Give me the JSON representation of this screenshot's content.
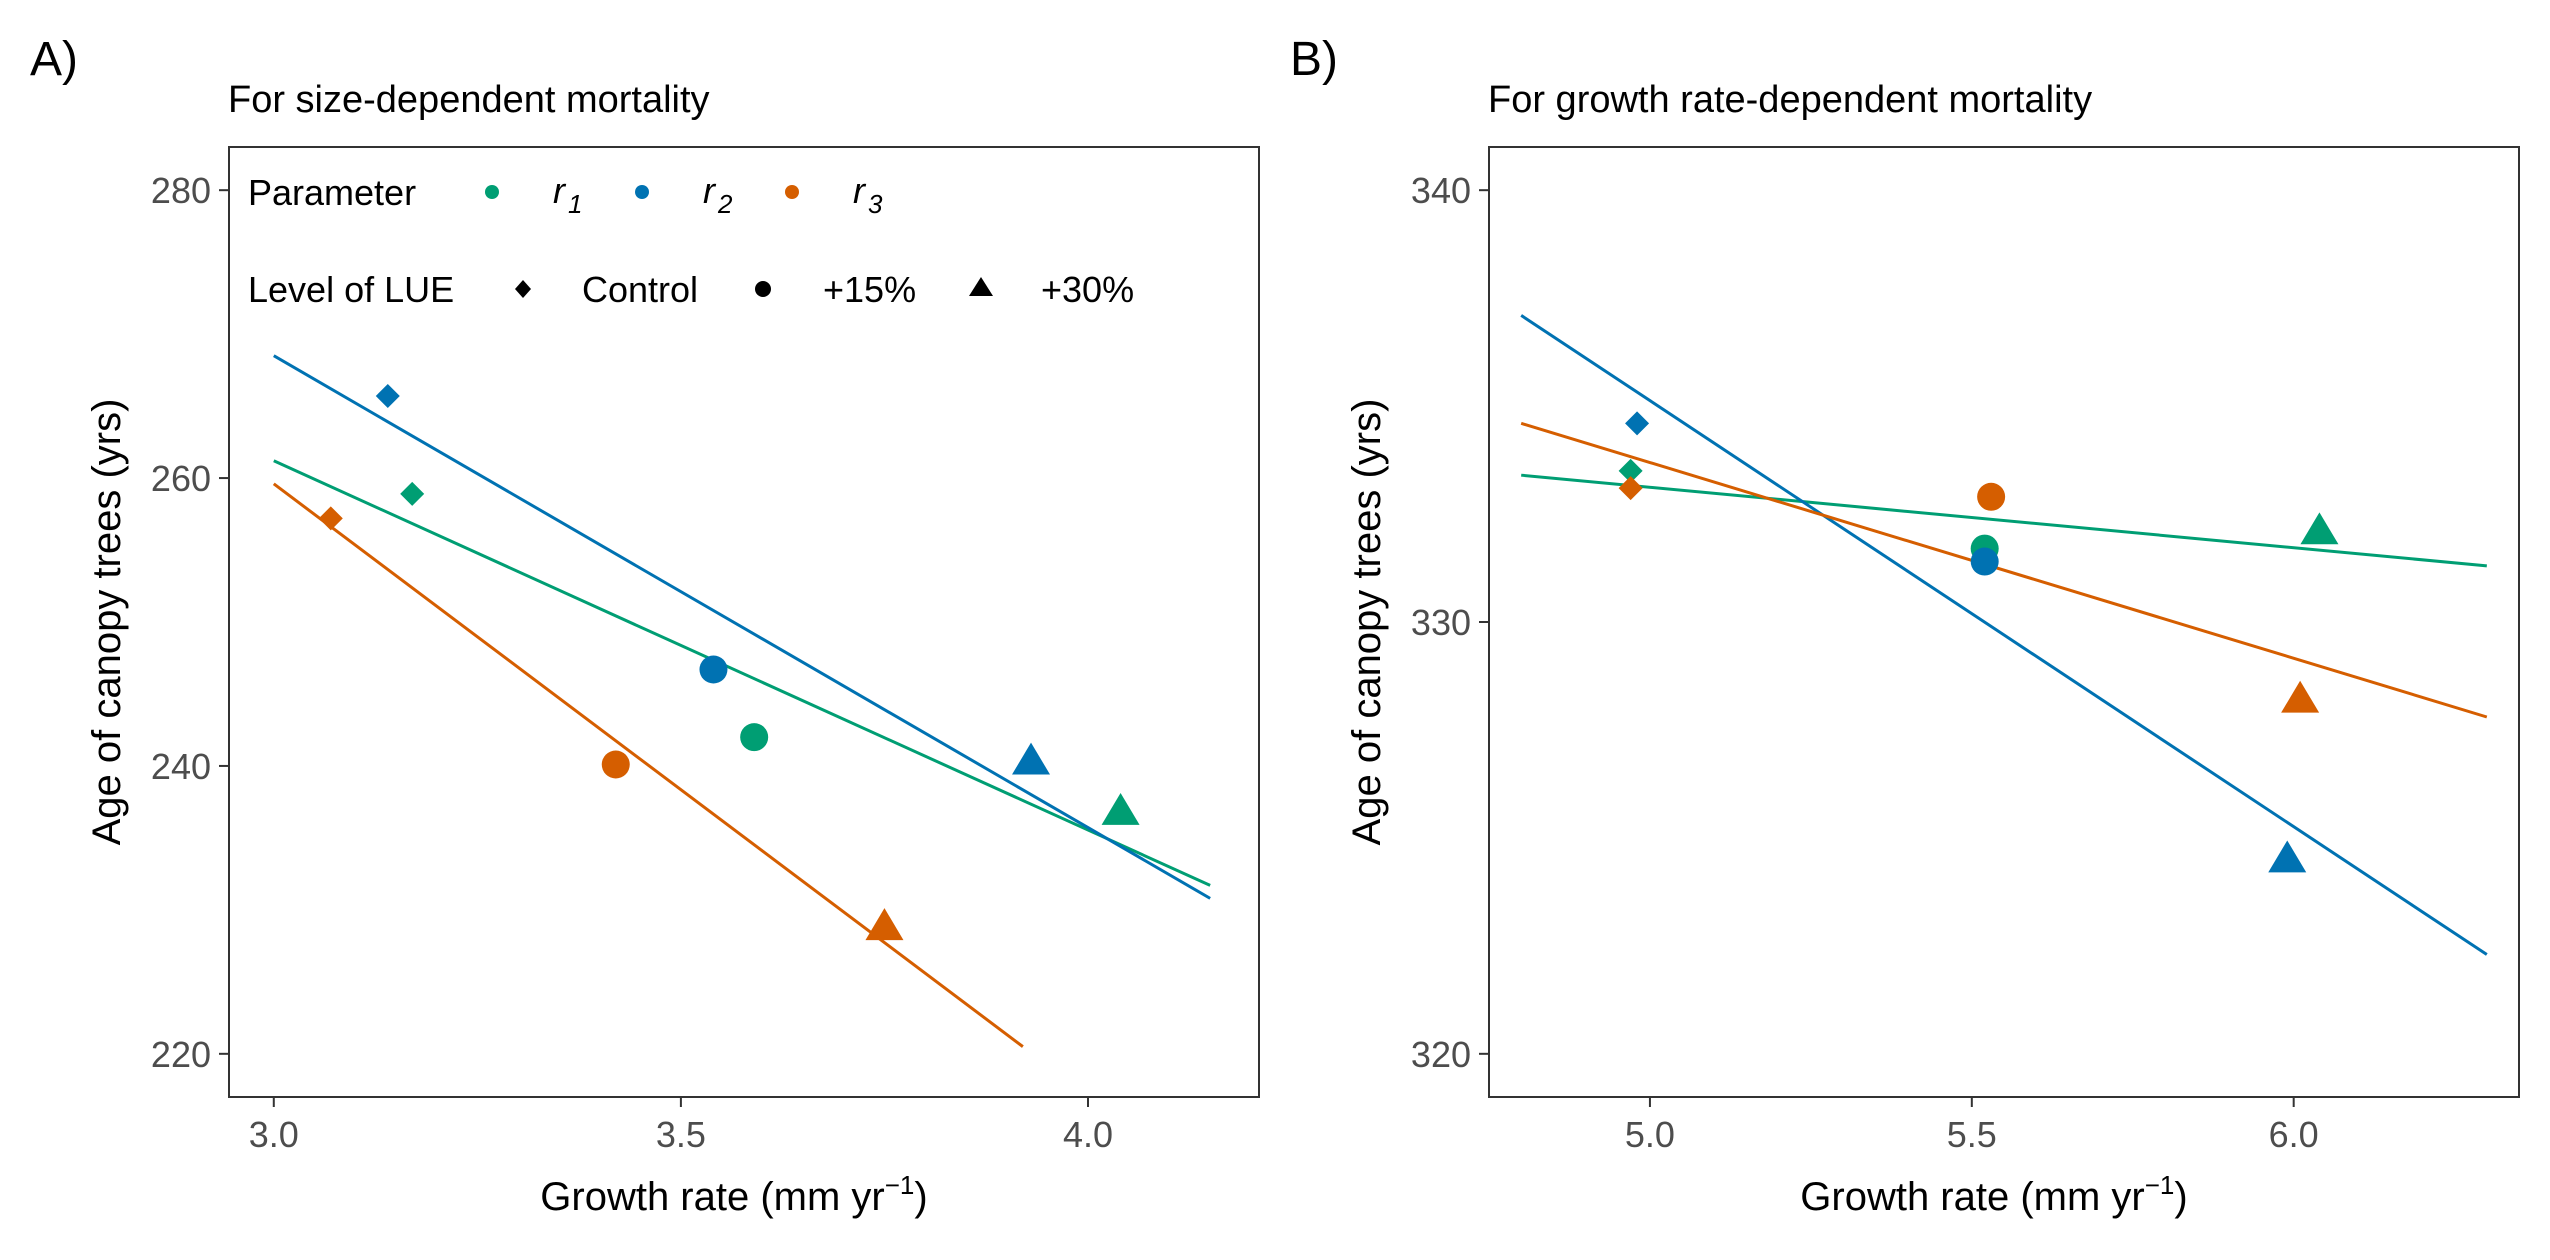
{
  "colors": {
    "r1": "#009E73",
    "r2": "#0072B2",
    "r3": "#D55E00"
  },
  "legend": {
    "parameter_title": "Parameter",
    "parameter_items": [
      {
        "key": "r1",
        "base": "r",
        "sub": "1"
      },
      {
        "key": "r2",
        "base": "r",
        "sub": "2"
      },
      {
        "key": "r3",
        "base": "r",
        "sub": "3"
      }
    ],
    "lue_title": "Level of LUE",
    "lue_items": [
      {
        "key": "control",
        "label": "Control",
        "shape": "diamond"
      },
      {
        "key": "p15",
        "label": "+15%",
        "shape": "circle"
      },
      {
        "key": "p30",
        "label": "+30%",
        "shape": "triangle"
      }
    ]
  },
  "chart_data": [
    {
      "type": "scatter",
      "panel_label": "A)",
      "title": "For size-dependent mortality",
      "xlabel_main": "Growth rate (mm yr",
      "xlabel_sup": "−1",
      "xlabel_close": ")",
      "ylabel": "Age of canopy trees (yrs)",
      "xlim": [
        2.945,
        4.21
      ],
      "ylim": [
        217,
        283
      ],
      "xticks": [
        "3.0",
        "3.5",
        "4.0"
      ],
      "yticks": [
        "220",
        "240",
        "260",
        "280"
      ],
      "grid": false,
      "legend_position": "top-left (inside)",
      "points": [
        {
          "param": "r1",
          "lue": "control",
          "x": 3.17,
          "y": 258.9
        },
        {
          "param": "r1",
          "lue": "p15",
          "x": 3.59,
          "y": 242.0
        },
        {
          "param": "r1",
          "lue": "p30",
          "x": 4.04,
          "y": 236.8
        },
        {
          "param": "r2",
          "lue": "control",
          "x": 3.14,
          "y": 265.7
        },
        {
          "param": "r2",
          "lue": "p15",
          "x": 3.54,
          "y": 246.7
        },
        {
          "param": "r2",
          "lue": "p30",
          "x": 3.93,
          "y": 240.3
        },
        {
          "param": "r3",
          "lue": "control",
          "x": 3.07,
          "y": 257.2
        },
        {
          "param": "r3",
          "lue": "p15",
          "x": 3.42,
          "y": 240.1
        },
        {
          "param": "r3",
          "lue": "p30",
          "x": 3.75,
          "y": 228.8
        }
      ],
      "fits": [
        {
          "param": "r1",
          "x": [
            3.0,
            4.15
          ],
          "y": [
            261.2,
            231.7
          ]
        },
        {
          "param": "r2",
          "x": [
            3.0,
            4.15
          ],
          "y": [
            268.5,
            230.8
          ]
        },
        {
          "param": "r3",
          "x": [
            3.0,
            3.92
          ],
          "y": [
            259.6,
            220.5
          ]
        }
      ]
    },
    {
      "type": "scatter",
      "panel_label": "B)",
      "title": "For growth rate-dependent mortality",
      "xlabel_main": "Growth rate (mm yr",
      "xlabel_sup": "−1",
      "xlabel_close": ")",
      "ylabel": "Age of canopy trees (yrs)",
      "xlim": [
        4.75,
        6.35
      ],
      "ylim": [
        319,
        341
      ],
      "xticks": [
        "5.0",
        "5.5",
        "6.0"
      ],
      "yticks": [
        "320",
        "330",
        "340"
      ],
      "grid": false,
      "legend_position": "none",
      "points": [
        {
          "param": "r1",
          "lue": "control",
          "x": 4.97,
          "y": 333.5
        },
        {
          "param": "r1",
          "lue": "p15",
          "x": 5.52,
          "y": 331.7
        },
        {
          "param": "r1",
          "lue": "p30",
          "x": 6.04,
          "y": 332.1
        },
        {
          "param": "r2",
          "lue": "control",
          "x": 4.98,
          "y": 334.6
        },
        {
          "param": "r2",
          "lue": "p15",
          "x": 5.52,
          "y": 331.4
        },
        {
          "param": "r2",
          "lue": "p30",
          "x": 5.99,
          "y": 324.5
        },
        {
          "param": "r3",
          "lue": "control",
          "x": 4.97,
          "y": 333.1
        },
        {
          "param": "r3",
          "lue": "p15",
          "x": 5.53,
          "y": 332.9
        },
        {
          "param": "r3",
          "lue": "p30",
          "x": 6.01,
          "y": 328.2
        }
      ],
      "fits": [
        {
          "param": "r1",
          "x": [
            4.8,
            6.3
          ],
          "y": [
            333.4,
            331.3
          ]
        },
        {
          "param": "r2",
          "x": [
            4.8,
            6.3
          ],
          "y": [
            337.1,
            322.3
          ]
        },
        {
          "param": "r3",
          "x": [
            4.8,
            6.3
          ],
          "y": [
            334.6,
            327.8
          ]
        }
      ]
    }
  ]
}
